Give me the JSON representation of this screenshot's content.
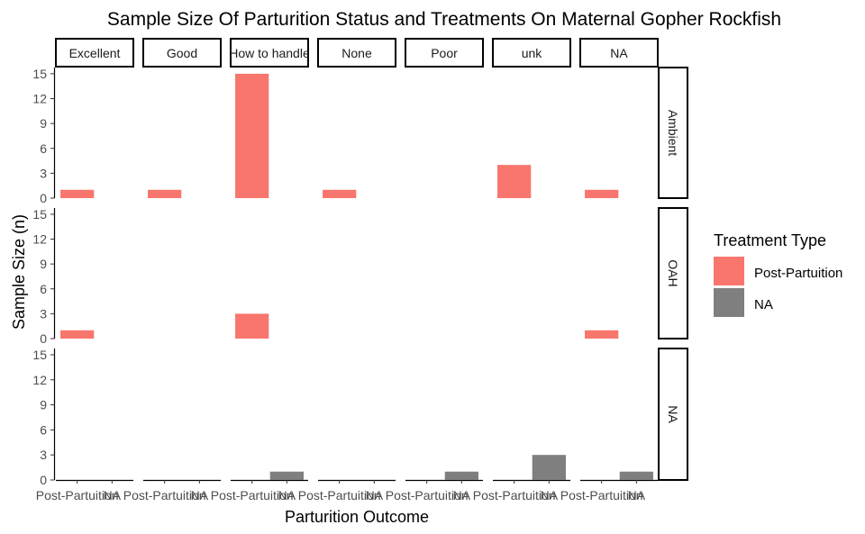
{
  "chart_data": {
    "type": "bar",
    "title": "Sample Size Of Parturition Status and Treatments On Maternal Gopher Rockfish",
    "xlabel": "Parturition Outcome",
    "ylabel": "Sample Size (n)",
    "legend": {
      "title": "Treatment Type",
      "placement": "right",
      "entries": [
        {
          "label": "Post-Partuition",
          "color": "#F8766D"
        },
        {
          "label": "NA",
          "color": "#7F7F7F"
        }
      ]
    },
    "column_facets": [
      "Excellent",
      "Good",
      "How to handle",
      "None",
      "Poor",
      "unk",
      "NA"
    ],
    "row_facets": [
      "Ambient",
      "OAH",
      "NA"
    ],
    "x_categories": [
      "Post-Partuition",
      "NA"
    ],
    "y_ticks": [
      0,
      3,
      6,
      9,
      12,
      15
    ],
    "ylim": [
      0,
      15.75
    ],
    "grid": false,
    "bars": [
      {
        "row": "Ambient",
        "col": "Excellent",
        "x": "Post-Partuition",
        "value": 1
      },
      {
        "row": "Ambient",
        "col": "Good",
        "x": "Post-Partuition",
        "value": 1
      },
      {
        "row": "Ambient",
        "col": "How to handle",
        "x": "Post-Partuition",
        "value": 15
      },
      {
        "row": "Ambient",
        "col": "None",
        "x": "Post-Partuition",
        "value": 1
      },
      {
        "row": "Ambient",
        "col": "unk",
        "x": "Post-Partuition",
        "value": 4
      },
      {
        "row": "Ambient",
        "col": "NA",
        "x": "Post-Partuition",
        "value": 1
      },
      {
        "row": "OAH",
        "col": "Excellent",
        "x": "Post-Partuition",
        "value": 1
      },
      {
        "row": "OAH",
        "col": "How to handle",
        "x": "Post-Partuition",
        "value": 3
      },
      {
        "row": "OAH",
        "col": "NA",
        "x": "Post-Partuition",
        "value": 1
      },
      {
        "row": "NA",
        "col": "How to handle",
        "x": "NA",
        "value": 1
      },
      {
        "row": "NA",
        "col": "Poor",
        "x": "NA",
        "value": 1
      },
      {
        "row": "NA",
        "col": "unk",
        "x": "NA",
        "value": 3
      },
      {
        "row": "NA",
        "col": "NA",
        "x": "NA",
        "value": 1
      }
    ]
  }
}
